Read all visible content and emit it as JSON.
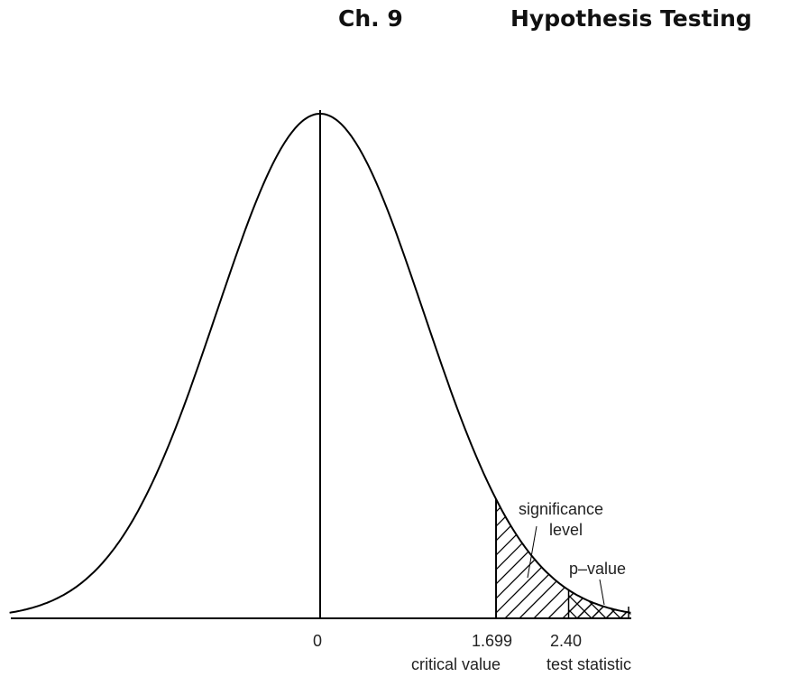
{
  "header": {
    "chapter": "Ch. 9",
    "title": "Hypothesis Testing"
  },
  "chart_data": {
    "type": "area",
    "title": "",
    "description": "Bell-shaped t / normal density curve with right-tail rejection region shaded",
    "xlabel": "",
    "ylabel": "",
    "xlim": [
      -3.0,
      3.0
    ],
    "grid": false,
    "x_ticks": [
      {
        "value": 0,
        "label": "0"
      },
      {
        "value": 1.699,
        "label": "1.699",
        "sublabel": "critical value"
      },
      {
        "value": 2.4,
        "label": "2.40",
        "sublabel": "test statistic"
      }
    ],
    "regions": [
      {
        "name": "significance level",
        "from": 1.699,
        "to": 3.0,
        "pattern": "single hatch"
      },
      {
        "name": "p-value",
        "from": 2.4,
        "to": 3.0,
        "pattern": "cross hatch"
      }
    ],
    "annotations": [
      "significance level",
      "p–value"
    ]
  },
  "labels": {
    "zero": "0",
    "critical": "1.699",
    "critical_sub": "critical value",
    "test": "2.40",
    "test_sub": "test statistic",
    "sig_line1": "significance",
    "sig_line2": "level",
    "pvalue": "p–value"
  }
}
